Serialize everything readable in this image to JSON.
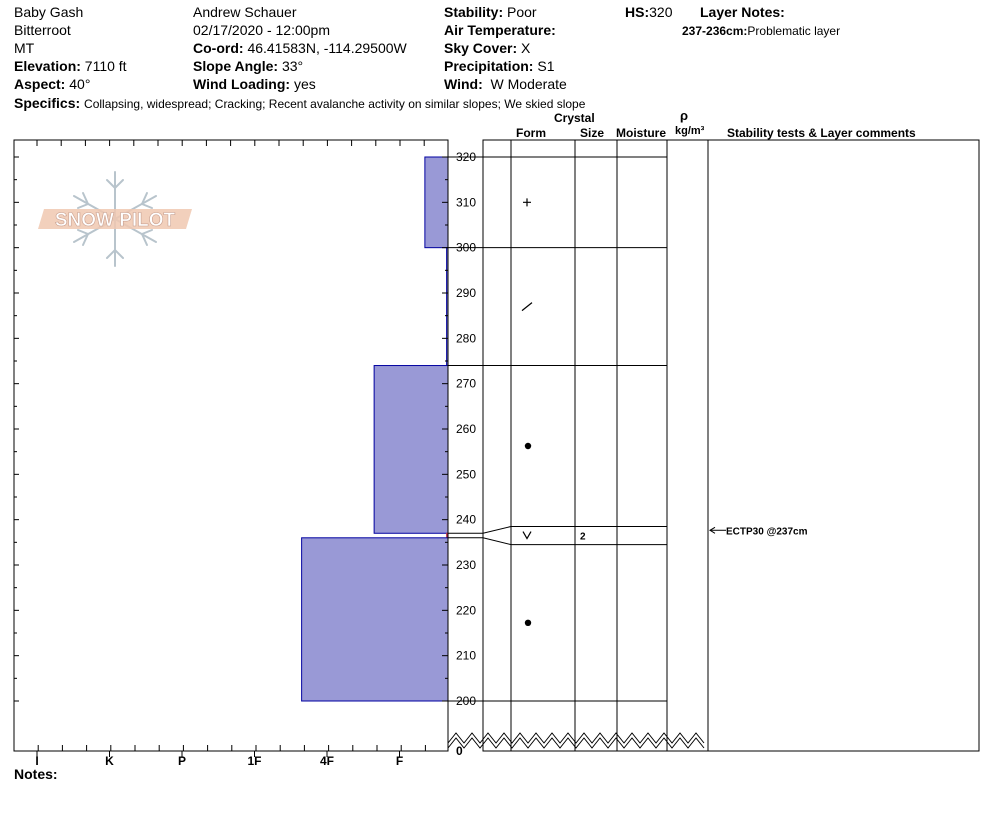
{
  "header": {
    "location": "Baby Gash",
    "range": "Bitterroot",
    "state": "MT",
    "elevation_label": "Elevation:",
    "elevation_value": "7110 ft",
    "aspect_label": "Aspect:",
    "aspect_value": "40°",
    "observer": "Andrew Schauer",
    "datetime": "02/17/2020 - 12:00pm",
    "coord_label": "Co-ord:",
    "coord_value": "46.41583N, -114.29500W",
    "slope_label": "Slope Angle:",
    "slope_value": "33°",
    "wind_loading_label": "Wind Loading:",
    "wind_loading_value": "yes",
    "stability_label": "Stability:",
    "stability_value": "Poor",
    "air_temp_label": "Air Temperature:",
    "air_temp_value": "",
    "sky_label": "Sky Cover:",
    "sky_value": "X",
    "precip_label": "Precipitation:",
    "precip_value": "S1",
    "wind_label": "Wind:",
    "wind_value": "W Moderate",
    "hs_label": "HS:",
    "hs_value": "320",
    "layer_notes_label": "Layer Notes:",
    "layer_note_depth": "237-236cm:",
    "layer_note_text": "Problematic layer",
    "specifics_label": "Specifics:",
    "specifics_value": "Collapsing, widespread;  Cracking;  Recent avalanche activity on similar slopes;  We skied slope"
  },
  "logo": {
    "text": "SNOW PILOT"
  },
  "columns": {
    "crystal": "Crystal",
    "form": "Form",
    "size": "Size",
    "moisture": "Moisture",
    "rho": "ρ",
    "density_unit": "kg/m³",
    "tests": "Stability tests & Layer comments"
  },
  "notes_label": "Notes:",
  "chart_data": {
    "type": "bar",
    "orientation": "horizontal",
    "description_axis": "height above ground (cm)",
    "hardness_scale": [
      "I",
      "K",
      "P",
      "1F",
      "4F",
      "F"
    ],
    "hardness_tick_values": [
      1,
      2,
      3,
      4,
      5,
      6
    ],
    "y_range": [
      200,
      320
    ],
    "y_ticks": [
      320,
      310,
      300,
      290,
      280,
      270,
      260,
      250,
      240,
      230,
      220,
      210,
      200
    ],
    "y_break_label": "0",
    "layers": [
      {
        "top": 320,
        "bottom": 300,
        "hardness": "F",
        "hardness_value": 6.35,
        "form": "+",
        "size": ""
      },
      {
        "top": 300,
        "bottom": 274,
        "hardness": "F",
        "hardness_value": 6.65,
        "form": "/",
        "size": ""
      },
      {
        "top": 274,
        "bottom": 237,
        "hardness": "4F",
        "hardness_value": 5.65,
        "form": "•",
        "size": ""
      },
      {
        "top": 237,
        "bottom": 236,
        "hardness": "F",
        "hardness_value": 6.65,
        "form": "V",
        "size": "2",
        "color": "#c0304a"
      },
      {
        "top": 236,
        "bottom": 200,
        "hardness": "1F",
        "hardness_value": 4.65,
        "form": "•",
        "size": ""
      }
    ],
    "row_lines": [
      320,
      300,
      274,
      238.5,
      234.5,
      200
    ],
    "row_connector_cm": [
      237,
      236
    ],
    "stability_tests": [
      {
        "depth": 237,
        "text": "ECTP30 @237cm"
      }
    ],
    "colors": {
      "bar_fill": "#9999d6",
      "bar_stroke": "#0000a0",
      "weak_layer": "#c0304a"
    }
  }
}
